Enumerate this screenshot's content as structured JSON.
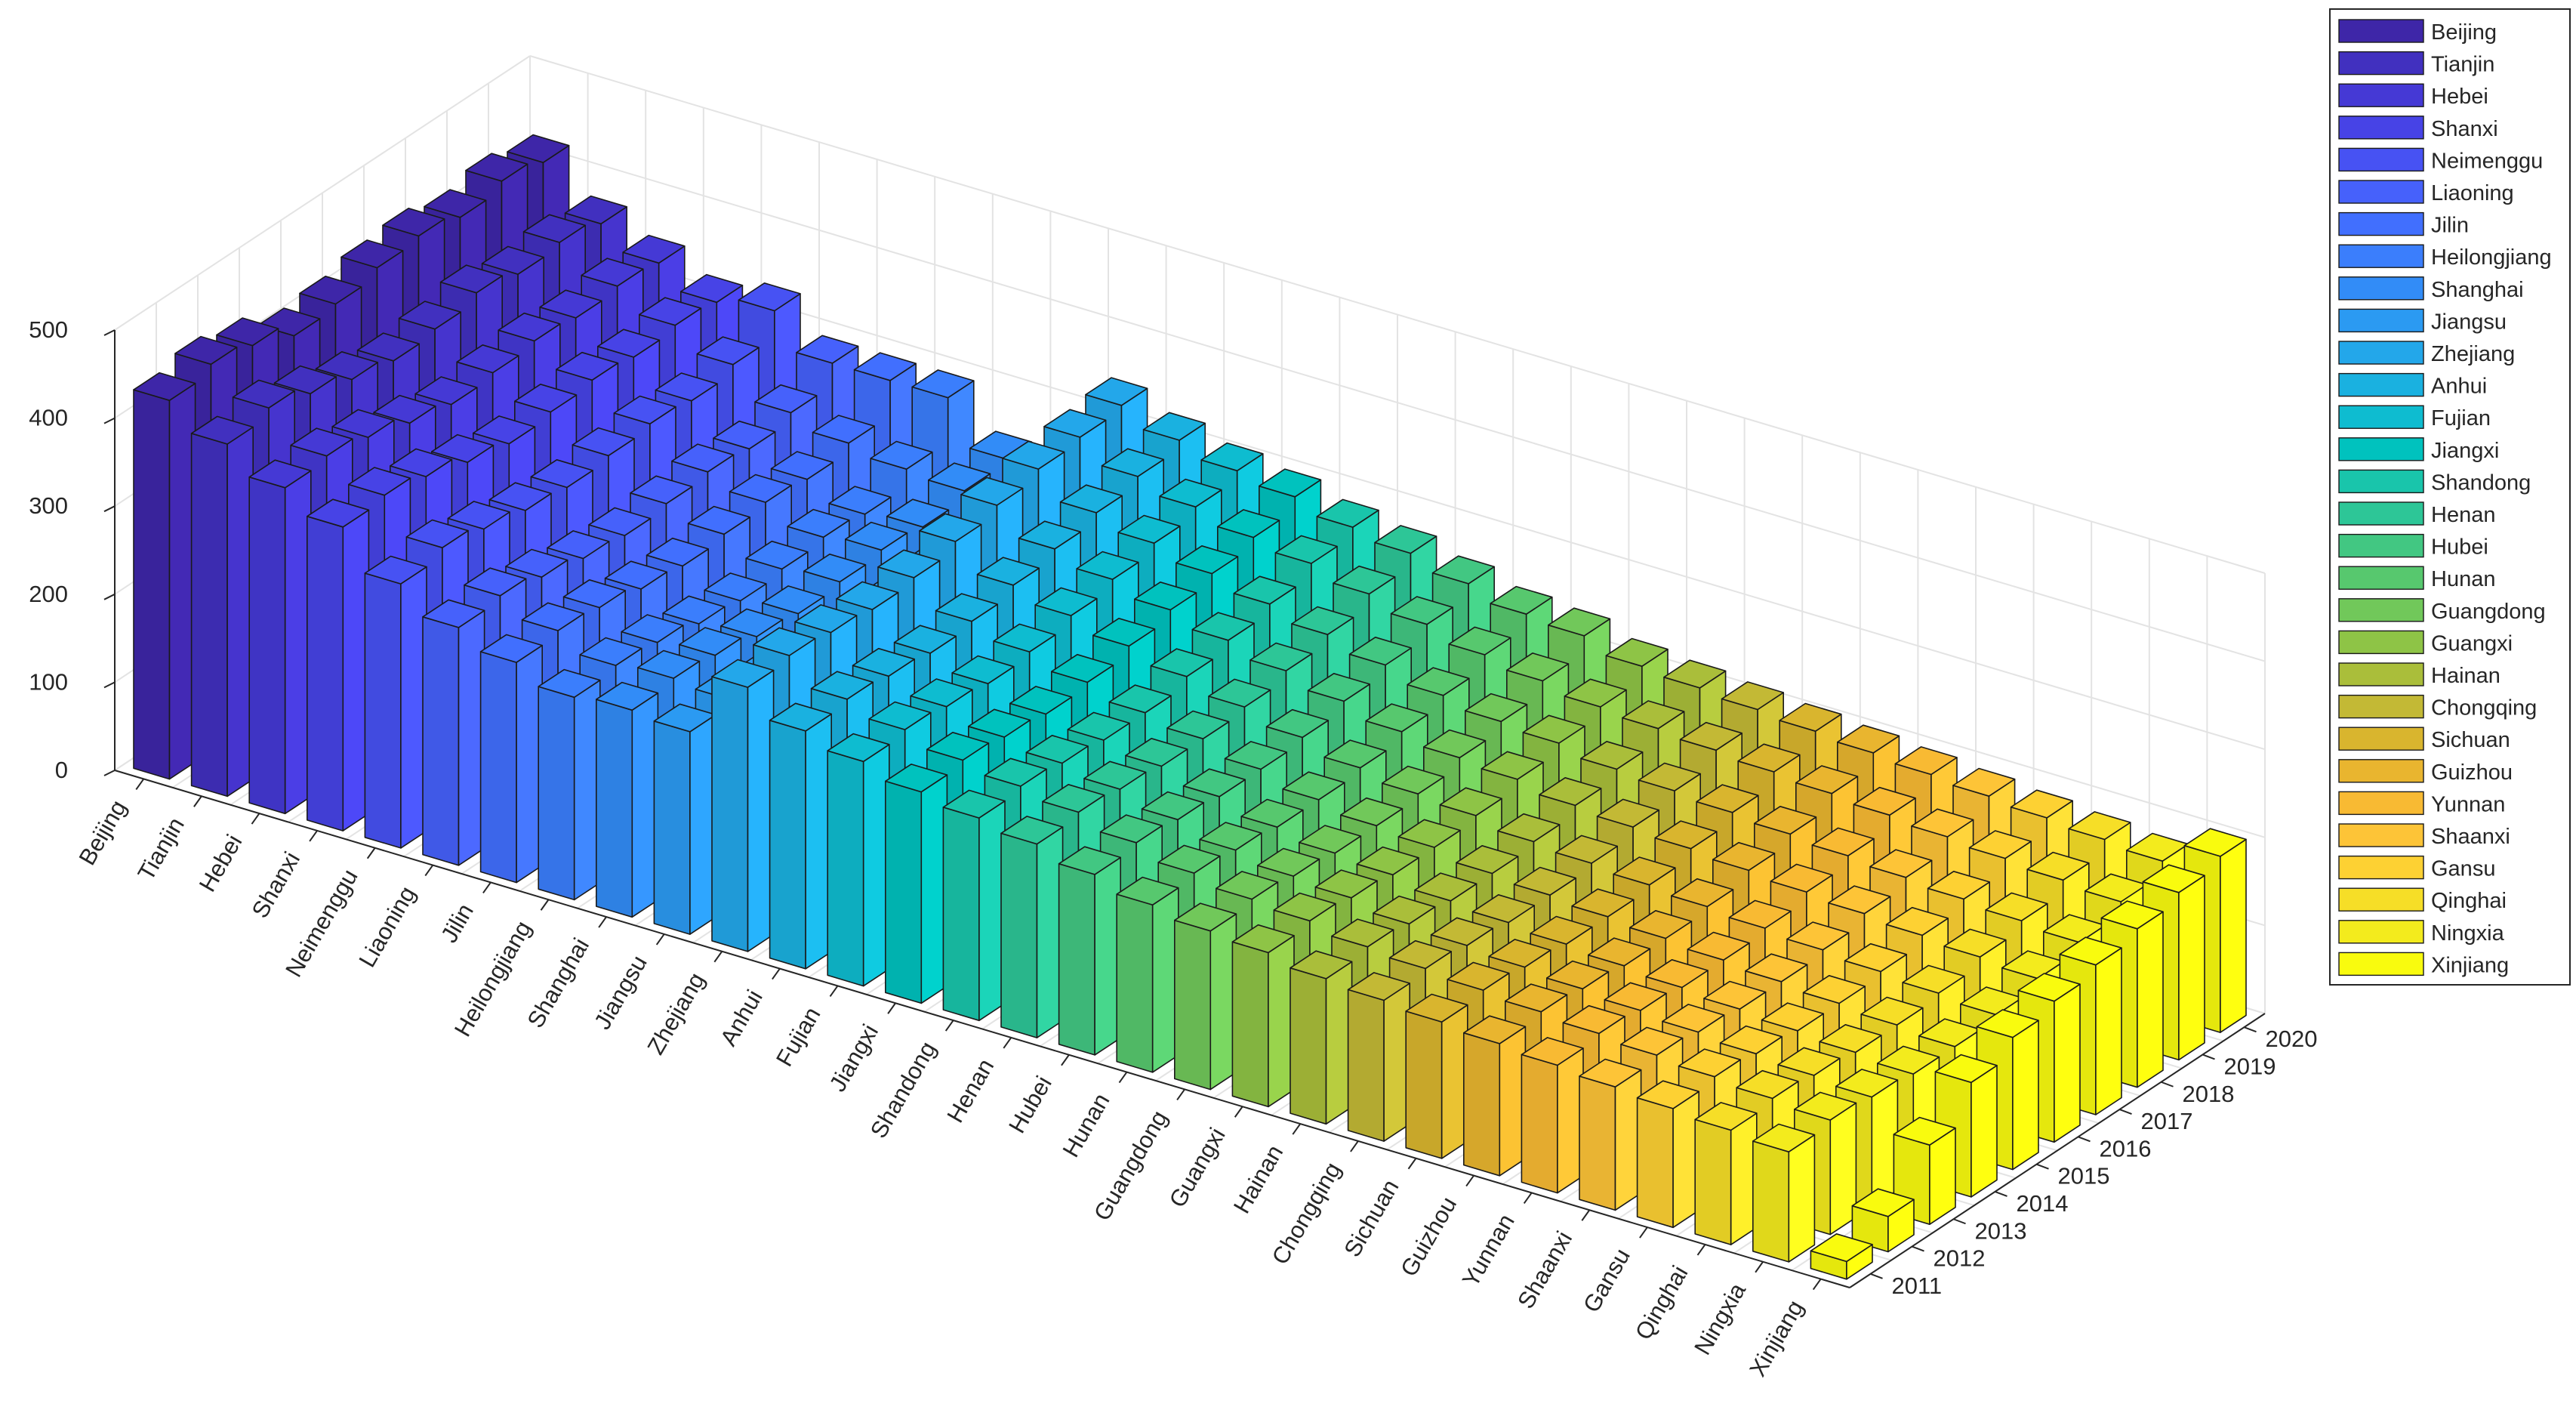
{
  "chart_data": {
    "type": "bar3",
    "title": "",
    "xlabel": "",
    "ylabel": "",
    "zlabel": "",
    "zlim": [
      0,
      500
    ],
    "zticks": [
      "0",
      "100",
      "200",
      "300",
      "400",
      "500"
    ],
    "grid": true,
    "legend_position": "top-right",
    "years": [
      "2011",
      "2012",
      "2013",
      "2014",
      "2015",
      "2016",
      "2017",
      "2018",
      "2019",
      "2020"
    ],
    "regions": [
      "Beijing",
      "Tianjin",
      "Hebei",
      "Shanxi",
      "Neimenggu",
      "Liaoning",
      "Jilin",
      "Heilongjiang",
      "Shanghai",
      "Jiangsu",
      "Zhejiang",
      "Anhui",
      "Fujian",
      "Jiangxi",
      "Shandong",
      "Henan",
      "Hubei",
      "Hunan",
      "Guangdong",
      "Guangxi",
      "Hainan",
      "Chongqing",
      "Sichuan",
      "Guizhou",
      "Yunnan",
      "Shaanxi",
      "Gansu",
      "Qinghai",
      "Ningxia",
      "Xinjiang"
    ],
    "colors": [
      "#3e26a8",
      "#4130bf",
      "#4539d5",
      "#4743e6",
      "#4752f3",
      "#4661fb",
      "#416ffe",
      "#3b7efc",
      "#328cf7",
      "#2b9af2",
      "#23a7ea",
      "#1ab1e0",
      "#0ebcd0",
      "#00c2be",
      "#19c5ab",
      "#2dc697",
      "#42c782",
      "#57c86e",
      "#71c85a",
      "#8ec446",
      "#aabe3a",
      "#c3b935",
      "#d9b52e",
      "#e9b52f",
      "#f8ba33",
      "#fdc437",
      "#fdd133",
      "#f6de27",
      "#f3eb1d",
      "#f9fb0e"
    ],
    "series": [
      {
        "name": "Beijing",
        "values": [
          430,
          440,
          430,
          410,
          415,
          425,
          430,
          420,
          430,
          420
        ]
      },
      {
        "name": "Tianjin",
        "values": [
          400,
          410,
          395,
          380,
          370,
          375,
          385,
          375,
          380,
          370
        ]
      },
      {
        "name": "Hebei",
        "values": [
          370,
          375,
          365,
          350,
          340,
          345,
          350,
          345,
          350,
          345
        ]
      },
      {
        "name": "Shanxi",
        "values": [
          345,
          350,
          340,
          325,
          315,
          320,
          325,
          320,
          325,
          320
        ]
      },
      {
        "name": "Neimenggu",
        "values": [
          300,
          310,
          300,
          290,
          285,
          290,
          295,
          290,
          300,
          330
        ]
      },
      {
        "name": "Liaoning",
        "values": [
          270,
          275,
          265,
          255,
          250,
          255,
          260,
          255,
          265,
          290
        ]
      },
      {
        "name": "Jilin",
        "values": [
          250,
          255,
          250,
          240,
          235,
          240,
          245,
          240,
          250,
          290
        ]
      },
      {
        "name": "Heilongjiang",
        "values": [
          230,
          235,
          230,
          220,
          215,
          220,
          225,
          220,
          240,
          290
        ]
      },
      {
        "name": "Shanghai",
        "values": [
          235,
          240,
          235,
          225,
          220,
          225,
          230,
          225,
          235,
          240
        ]
      },
      {
        "name": "Jiangsu",
        "values": [
          230,
          235,
          228,
          220,
          215,
          220,
          225,
          220,
          230,
          230
        ]
      },
      {
        "name": "Zhejiang",
        "values": [
          300,
          305,
          300,
          295,
          300,
          310,
          320,
          330,
          335,
          340
        ]
      },
      {
        "name": "Anhui",
        "values": [
          270,
          275,
          270,
          265,
          270,
          280,
          290,
          300,
          310,
          320
        ]
      },
      {
        "name": "Fujian",
        "values": [
          255,
          260,
          255,
          250,
          255,
          265,
          275,
          285,
          295,
          305
        ]
      },
      {
        "name": "Jiangxi",
        "values": [
          240,
          245,
          240,
          235,
          240,
          250,
          260,
          270,
          280,
          295
        ]
      },
      {
        "name": "Shandong",
        "values": [
          230,
          235,
          230,
          225,
          225,
          235,
          245,
          255,
          270,
          280
        ]
      },
      {
        "name": "Henan",
        "values": [
          220,
          225,
          220,
          215,
          215,
          220,
          230,
          240,
          255,
          270
        ]
      },
      {
        "name": "Hubei",
        "values": [
          205,
          210,
          205,
          200,
          200,
          205,
          215,
          225,
          240,
          255
        ]
      },
      {
        "name": "Hunan",
        "values": [
          190,
          195,
          190,
          185,
          185,
          190,
          200,
          210,
          225,
          240
        ]
      },
      {
        "name": "Guangdong",
        "values": [
          180,
          185,
          180,
          175,
          175,
          180,
          190,
          200,
          215,
          235
        ]
      },
      {
        "name": "Guangxi",
        "values": [
          175,
          180,
          175,
          170,
          170,
          175,
          185,
          195,
          205,
          220
        ]
      },
      {
        "name": "Hainan",
        "values": [
          165,
          170,
          165,
          160,
          160,
          165,
          175,
          185,
          200,
          215
        ]
      },
      {
        "name": "Chongqing",
        "values": [
          160,
          165,
          160,
          155,
          155,
          160,
          170,
          180,
          195,
          210
        ]
      },
      {
        "name": "Sichuan",
        "values": [
          155,
          160,
          155,
          150,
          150,
          155,
          165,
          175,
          190,
          205
        ]
      },
      {
        "name": "Guizhou",
        "values": [
          150,
          155,
          150,
          145,
          145,
          150,
          160,
          170,
          185,
          200
        ]
      },
      {
        "name": "Yunnan",
        "values": [
          145,
          150,
          145,
          140,
          140,
          145,
          155,
          165,
          180,
          195
        ]
      },
      {
        "name": "Shaanxi",
        "values": [
          140,
          145,
          140,
          135,
          135,
          140,
          150,
          160,
          175,
          190
        ]
      },
      {
        "name": "Gansu",
        "values": [
          135,
          140,
          135,
          130,
          130,
          135,
          145,
          155,
          170,
          185
        ]
      },
      {
        "name": "Qinghai",
        "values": [
          130,
          135,
          130,
          125,
          125,
          130,
          140,
          150,
          165,
          180
        ]
      },
      {
        "name": "Ningxia",
        "values": [
          125,
          130,
          125,
          120,
          120,
          125,
          135,
          145,
          160,
          175
        ]
      },
      {
        "name": "Xinjiang",
        "values": [
          20,
          40,
          90,
          130,
          150,
          160,
          170,
          180,
          190,
          200
        ]
      }
    ]
  }
}
